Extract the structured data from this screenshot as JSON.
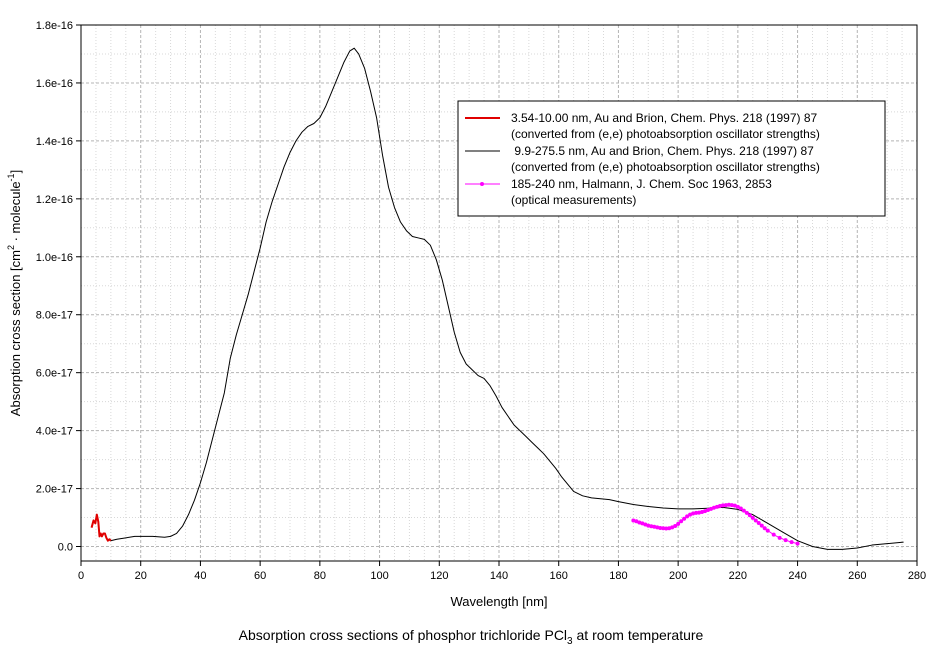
{
  "chart_data": {
    "type": "line",
    "title": "Absorption cross sections of phosphor trichloride PCl3 at room temperature",
    "title_parts": {
      "main": "Absorption cross sections of phosphor trichloride PCl",
      "sub": "3",
      "tail": " at room temperature"
    },
    "xlabel": "Wavelength [nm]",
    "ylabel_parts": {
      "a": "Absorption cross section [cm",
      "sup1": "2",
      "b": " · molecule",
      "sup2": "-1",
      "c": "]"
    },
    "xlim": [
      0,
      280
    ],
    "ylim": [
      -5e-18,
      1.8e-16
    ],
    "xticks": [
      0,
      20,
      40,
      60,
      80,
      100,
      120,
      140,
      160,
      180,
      200,
      220,
      240,
      260,
      280
    ],
    "yticks": [
      0,
      2e-17,
      4e-17,
      6e-17,
      8e-17,
      1e-16,
      1.2e-16,
      1.4e-16,
      1.6e-16,
      1.8e-16
    ],
    "ytick_labels": [
      "0.0",
      "2.0e-17",
      "4.0e-17",
      "6.0e-17",
      "8.0e-17",
      "1.0e-16",
      "1.2e-16",
      "1.4e-16",
      "1.6e-16",
      "1.8e-16"
    ],
    "grid": true,
    "legend_position": "top-right",
    "series": [
      {
        "name": "3.54-10.00 nm",
        "legend_line1": "3.54-10.00 nm, Au and Brion, Chem. Phys. 218 (1997) 87",
        "legend_line2": "(converted from (e,e) photoabsorption oscillator strengths)",
        "color": "#e00000",
        "style": "line-thick",
        "x": [
          3.54,
          4.2,
          4.8,
          5.3,
          5.8,
          6.2,
          6.6,
          7.0,
          7.5,
          8.0,
          8.5,
          9.0,
          9.5,
          10.0
        ],
        "y": [
          6.5e-18,
          9e-18,
          8e-18,
          1.1e-17,
          8.5e-18,
          3.5e-18,
          4.5e-18,
          3.5e-18,
          4.5e-18,
          4.5e-18,
          3e-18,
          2e-18,
          2.5e-18,
          2e-18
        ]
      },
      {
        "name": "9.9-275.5 nm",
        "legend_line1": " 9.9-275.5 nm, Au and Brion, Chem. Phys. 218 (1997) 87",
        "legend_line2": "(converted from (e,e) photoabsorption oscillator strengths)",
        "color": "#000000",
        "style": "line",
        "x": [
          9.9,
          12,
          15,
          18,
          20,
          24,
          28,
          30,
          32,
          34,
          36,
          38,
          40,
          42,
          44,
          46,
          48,
          50,
          52,
          54,
          56,
          58,
          60,
          62,
          64,
          66,
          68,
          70,
          72,
          74,
          76,
          78,
          80,
          82,
          84,
          86,
          88,
          90,
          91.5,
          93,
          95,
          97,
          99,
          101,
          103,
          105,
          107,
          109,
          111,
          113,
          115,
          117,
          119,
          121,
          123,
          125,
          127,
          129,
          131,
          133,
          135,
          137,
          139,
          141,
          143,
          145,
          147,
          149,
          151,
          153,
          155,
          157,
          159,
          161,
          163,
          165,
          168,
          171,
          174,
          177,
          180,
          185,
          190,
          195,
          200,
          205,
          210,
          215,
          220,
          225,
          230,
          235,
          240,
          245,
          250,
          255,
          260,
          265,
          270,
          275.5
        ],
        "y": [
          2e-18,
          2.5e-18,
          3e-18,
          3.5e-18,
          3.5e-18,
          3.5e-18,
          3.2e-18,
          3.5e-18,
          4.5e-18,
          7e-18,
          1.1e-17,
          1.6e-17,
          2.2e-17,
          2.9e-17,
          3.7e-17,
          4.5e-17,
          5.3e-17,
          6.5e-17,
          7.3e-17,
          8e-17,
          8.7e-17,
          9.5e-17,
          1.03e-16,
          1.12e-16,
          1.19e-16,
          1.25e-16,
          1.31e-16,
          1.36e-16,
          1.4e-16,
          1.43e-16,
          1.45e-16,
          1.46e-16,
          1.48e-16,
          1.52e-16,
          1.57e-16,
          1.62e-16,
          1.67e-16,
          1.71e-16,
          1.72e-16,
          1.7e-16,
          1.65e-16,
          1.57e-16,
          1.48e-16,
          1.35e-16,
          1.24e-16,
          1.17e-16,
          1.12e-16,
          1.09e-16,
          1.07e-16,
          1.065e-16,
          1.06e-16,
          1.04e-16,
          9.9e-17,
          9.2e-17,
          8.3e-17,
          7.4e-17,
          6.7e-17,
          6.3e-17,
          6.1e-17,
          5.9e-17,
          5.8e-17,
          5.55e-17,
          5.2e-17,
          4.8e-17,
          4.5e-17,
          4.2e-17,
          4e-17,
          3.8e-17,
          3.6e-17,
          3.4e-17,
          3.2e-17,
          2.95e-17,
          2.7e-17,
          2.4e-17,
          2.15e-17,
          1.9e-17,
          1.75e-17,
          1.68e-17,
          1.65e-17,
          1.62e-17,
          1.55e-17,
          1.45e-17,
          1.38e-17,
          1.33e-17,
          1.3e-17,
          1.3e-17,
          1.32e-17,
          1.35e-17,
          1.28e-17,
          1.1e-17,
          8e-18,
          5e-18,
          2e-18,
          0.0,
          -1e-18,
          -1e-18,
          -5e-19,
          5e-19,
          1e-18,
          1.5e-18
        ]
      },
      {
        "name": "185-240 nm",
        "legend_line1": "185-240 nm, Halmann, J. Chem. Soc 1963, 2853",
        "legend_line2": "(optical measurements)",
        "color": "#ff00ff",
        "style": "line-markers",
        "x": [
          185,
          186,
          187,
          188,
          189,
          190,
          191,
          192,
          193,
          194,
          195,
          196,
          197,
          198,
          199,
          200,
          201,
          202,
          203,
          204,
          205,
          206,
          207,
          208,
          209,
          210,
          211,
          212,
          213,
          214,
          215,
          216,
          217,
          218,
          219,
          220,
          221,
          222,
          223,
          224,
          225,
          226,
          227,
          228,
          229,
          230,
          232,
          234,
          236,
          238,
          240
        ],
        "y": [
          9e-18,
          8.7e-18,
          8.3e-18,
          8e-18,
          7.6e-18,
          7.2e-18,
          7e-18,
          6.8e-18,
          6.6e-18,
          6.4e-18,
          6.3e-18,
          6.2e-18,
          6.3e-18,
          6.6e-18,
          7.1e-18,
          7.8e-18,
          8.7e-18,
          9.6e-18,
          1.04e-17,
          1.1e-17,
          1.14e-17,
          1.16e-17,
          1.17e-17,
          1.19e-17,
          1.22e-17,
          1.26e-17,
          1.3e-17,
          1.34e-17,
          1.37e-17,
          1.4e-17,
          1.42e-17,
          1.43e-17,
          1.44e-17,
          1.43e-17,
          1.41e-17,
          1.37e-17,
          1.31e-17,
          1.24e-17,
          1.16e-17,
          1.08e-17,
          9.9e-18,
          9e-18,
          8.1e-18,
          7.2e-18,
          6.3e-18,
          5.5e-18,
          4.1e-18,
          3e-18,
          2.2e-18,
          1.5e-18,
          1e-18
        ]
      }
    ]
  }
}
